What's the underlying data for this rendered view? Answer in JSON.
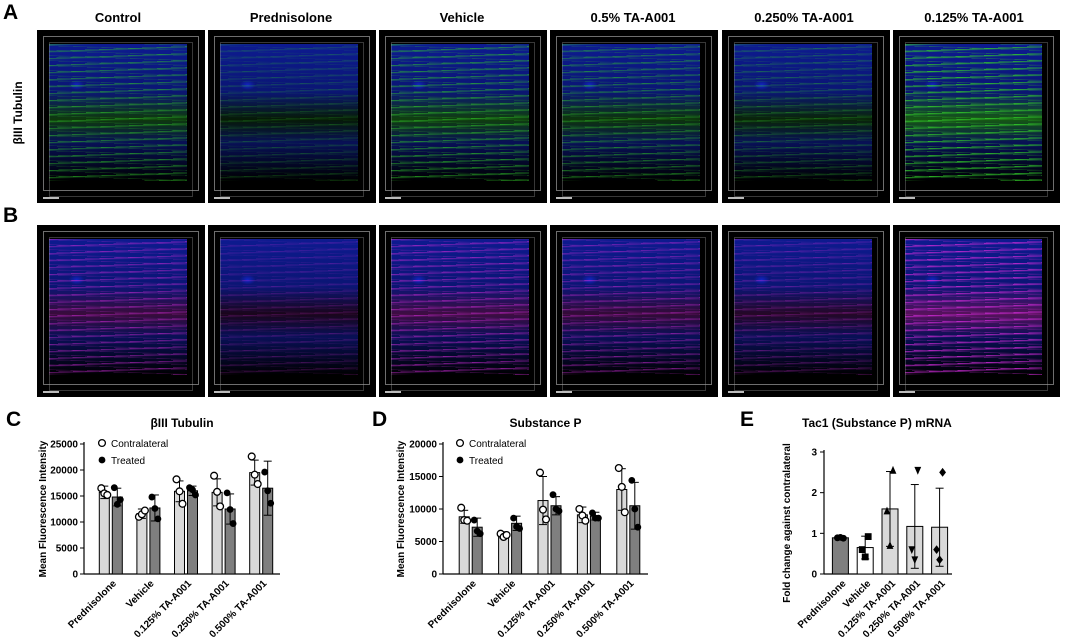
{
  "panels": {
    "A": "A",
    "B": "B",
    "C": "C",
    "D": "D",
    "E": "E"
  },
  "row_labels": {
    "A": "βIII Tubulin"
  },
  "columns": [
    "Control",
    "Prednisolone",
    "Vehicle",
    "0.5% TA-A001",
    "0.250% TA-A001",
    "0.125% TA-A001"
  ],
  "colors": {
    "nuclei": "#1428d8",
    "tubulin": "#33d02a",
    "substance_p": "#d02ad8",
    "bar_contralateral": "#d9d9d9",
    "bar_treated": "#7f7f7f",
    "bar_e_vehicle": "#7f7f7f"
  },
  "chart_data": [
    {
      "id": "C",
      "type": "bar",
      "title": "βIII Tubulin",
      "ylabel": "Mean Fluorescence Intensity",
      "xlabel": "",
      "ylim": [
        0,
        25000
      ],
      "yticks": [
        0,
        5000,
        10000,
        15000,
        20000,
        25000
      ],
      "yticklabels": [
        "0",
        "5000",
        "10000",
        "15000",
        "20000",
        "25000"
      ],
      "categories": [
        "Prednisolone",
        "Vehicle",
        "0.125% TA-A001",
        "0.250% TA-A001",
        "0.500% TA-A001"
      ],
      "legend": {
        "placement": "top-left",
        "entries": [
          "Contralateral",
          "Treated"
        ]
      },
      "series": [
        {
          "name": "Contralateral",
          "marker": "open-circle",
          "values": [
            15700,
            11600,
            15900,
            15700,
            19500
          ],
          "errors": [
            1200,
            900,
            2000,
            2600,
            2400
          ],
          "points": [
            [
              16500,
              15500,
              15200
            ],
            [
              11000,
              11500,
              12200
            ],
            [
              18200,
              15900,
              13500
            ],
            [
              18900,
              15800,
              13000
            ],
            [
              22600,
              19100,
              17300
            ]
          ]
        },
        {
          "name": "Treated",
          "marker": "filled-circle",
          "values": [
            14800,
            12700,
            16000,
            12500,
            16500
          ],
          "errors": [
            1700,
            2500,
            900,
            2900,
            5200
          ],
          "points": [
            [
              16600,
              13400,
              14300
            ],
            [
              14800,
              12600,
              10600
            ],
            [
              16600,
              16200,
              15200
            ],
            [
              15600,
              12400,
              9700
            ],
            [
              19600,
              16000,
              13600
            ]
          ]
        }
      ]
    },
    {
      "id": "D",
      "type": "bar",
      "title": "Substance P",
      "ylabel": "Mean Fluorescence Intensity",
      "xlabel": "",
      "ylim": [
        0,
        20000
      ],
      "yticks": [
        0,
        5000,
        10000,
        15000,
        20000
      ],
      "yticklabels": [
        "0",
        "5000",
        "10000",
        "15000",
        "20000"
      ],
      "categories": [
        "Prednisolone",
        "Vehicle",
        "0.125% TA-A001",
        "0.250% TA-A001",
        "0.500% TA-A001"
      ],
      "legend": {
        "placement": "top-left",
        "entries": [
          "Contralateral",
          "Treated"
        ]
      },
      "series": [
        {
          "name": "Contralateral",
          "marker": "open-circle",
          "values": [
            8800,
            6000,
            11300,
            9100,
            13000
          ],
          "errors": [
            1000,
            500,
            3700,
            1200,
            3200
          ],
          "points": [
            [
              10200,
              8300,
              8200
            ],
            [
              6200,
              5700,
              6000
            ],
            [
              15600,
              9900,
              8400
            ],
            [
              10000,
              9000,
              8200
            ],
            [
              16300,
              13400,
              9500
            ]
          ]
        },
        {
          "name": "Treated",
          "marker": "filled-circle",
          "values": [
            7200,
            7800,
            10500,
            8900,
            10500
          ],
          "errors": [
            1400,
            1100,
            1400,
            600,
            3600
          ],
          "points": [
            [
              8300,
              6600,
              6200
            ],
            [
              8600,
              7300,
              7000
            ],
            [
              12200,
              10000,
              9700
            ],
            [
              9400,
              8600,
              8600
            ],
            [
              14400,
              10000,
              7200
            ]
          ]
        }
      ]
    },
    {
      "id": "E",
      "type": "bar",
      "title": "Tac1 (Substance P) mRNA",
      "ylabel": "Fold change against contralateral",
      "xlabel": "",
      "ylim": [
        0,
        3
      ],
      "yticks": [
        0,
        1,
        2,
        3
      ],
      "yticklabels": [
        "0",
        "1",
        "2",
        "3"
      ],
      "categories": [
        "Prednisolone",
        "Vehicle",
        "0.125% TA-A001",
        "0.250% TA-A001",
        "0.500% TA-A001"
      ],
      "markers": [
        "filled-circle",
        "filled-square",
        "filled-triangle-up",
        "filled-triangle-down",
        "filled-diamond"
      ],
      "values": [
        0.89,
        0.65,
        1.6,
        1.17,
        1.15
      ],
      "errors": [
        0.02,
        0.28,
        0.92,
        1.03,
        0.96
      ],
      "points": [
        [
          0.88,
          0.89,
          0.9
        ],
        [
          0.92,
          0.6,
          0.42
        ],
        [
          2.55,
          1.55,
          0.7
        ],
        [
          2.55,
          0.6,
          0.35
        ],
        [
          2.5,
          0.6,
          0.35
        ]
      ]
    }
  ]
}
